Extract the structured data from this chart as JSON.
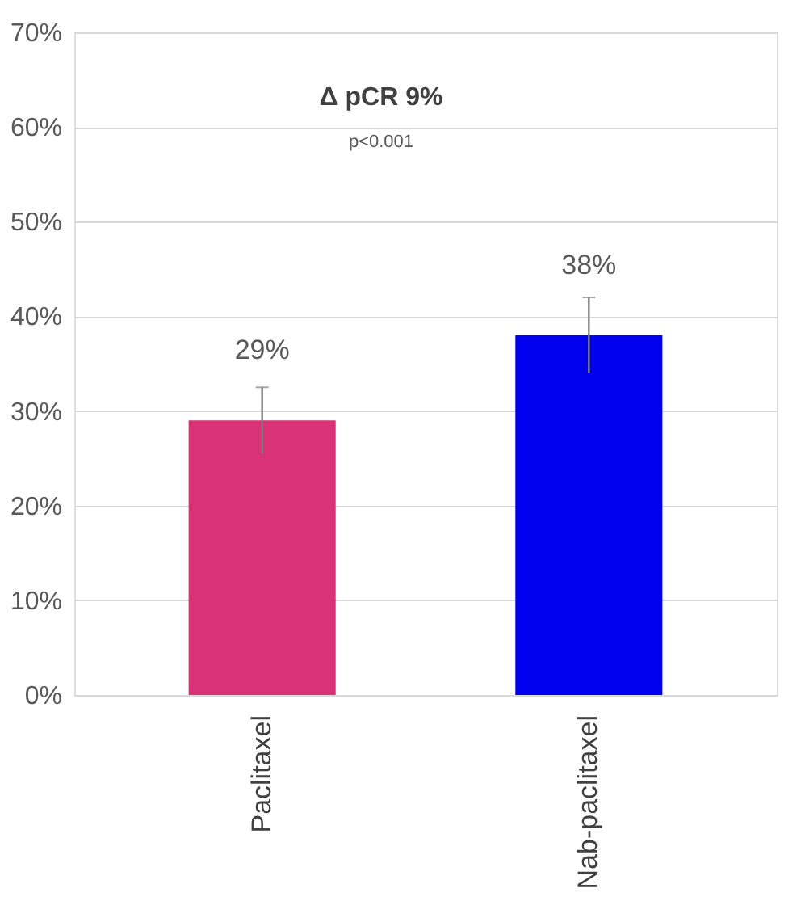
{
  "chart_data": {
    "type": "bar",
    "categories": [
      "Paclitaxel",
      "Nab-paclitaxel"
    ],
    "values": [
      29,
      38
    ],
    "colors": [
      "#d93277",
      "#0000ee"
    ],
    "errors": [
      3.5,
      4
    ],
    "value_labels": [
      "29%",
      "38%"
    ],
    "ylim": [
      0,
      70
    ],
    "yticks": [
      {
        "value": 0,
        "label": "0%"
      },
      {
        "value": 10,
        "label": "10%"
      },
      {
        "value": 20,
        "label": "20%"
      },
      {
        "value": 30,
        "label": "30%"
      },
      {
        "value": 40,
        "label": "40%"
      },
      {
        "value": 50,
        "label": "50%"
      },
      {
        "value": 60,
        "label": "60%"
      },
      {
        "value": 70,
        "label": "70%"
      }
    ],
    "grid": "y",
    "annotations": [
      "Δ pCR 9%",
      "p<0.001"
    ]
  }
}
